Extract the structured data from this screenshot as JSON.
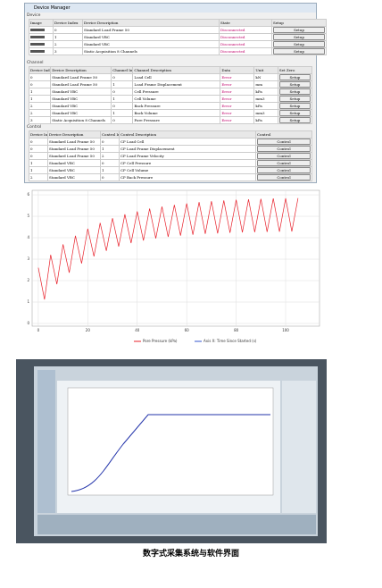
{
  "window": {
    "title": "Device Manager",
    "sections": {
      "device": "Device",
      "channel": "Channel",
      "control": "Control"
    }
  },
  "device_table": {
    "columns": [
      "Image",
      "Device Index",
      "Device Description",
      "State",
      "Setup"
    ],
    "rows": [
      [
        "0",
        "Standard Load Frame 50",
        "Disconnected",
        "Setup"
      ],
      [
        "1",
        "Standard VBC",
        "Disconnected",
        "Setup"
      ],
      [
        "2",
        "Standard VBC",
        "Disconnected",
        "Setup"
      ],
      [
        "3",
        "Static Acquisition 8 Channels",
        "Disconnected",
        "Setup"
      ]
    ]
  },
  "channel_table": {
    "columns": [
      "Device Index",
      "Device Description",
      "Channel Index",
      "Channel Description",
      "Data",
      "Unit",
      "Set Zero"
    ],
    "rows": [
      [
        "0",
        "Standard Load Frame 50",
        "0",
        "Load Cell",
        "Error",
        "kN",
        "Setup"
      ],
      [
        "0",
        "Standard Load Frame 50",
        "1",
        "Load Frame Displacement",
        "Error",
        "mm",
        "Setup"
      ],
      [
        "1",
        "Standard VBC",
        "0",
        "Cell Pressure",
        "Error",
        "kPa",
        "Setup"
      ],
      [
        "1",
        "Standard VBC",
        "1",
        "Cell Volume",
        "Error",
        "mm3",
        "Setup"
      ],
      [
        "2",
        "Standard VBC",
        "0",
        "Back Pressure",
        "Error",
        "kPa",
        "Setup"
      ],
      [
        "2",
        "Standard VBC",
        "1",
        "Back Volume",
        "Error",
        "mm3",
        "Setup"
      ],
      [
        "3",
        "Static Acquisition 8 Channels",
        "0",
        "Pore Pressure",
        "Error",
        "kPa",
        "Setup"
      ]
    ]
  },
  "control_table": {
    "columns": [
      "Device Index",
      "Device Description",
      "Control Index",
      "Control Description",
      "Control"
    ],
    "rows": [
      [
        "0",
        "Standard Load Frame 50",
        "0",
        "CP Load Cell",
        "Control"
      ],
      [
        "0",
        "Standard Load Frame 50",
        "1",
        "CP Load Frame Displacement",
        "Control"
      ],
      [
        "0",
        "Standard Load Frame 50",
        "2",
        "CP Load Frame Velocity",
        "Control"
      ],
      [
        "1",
        "Standard VBC",
        "0",
        "CP Cell Pressure",
        "Control"
      ],
      [
        "1",
        "Standard VBC",
        "1",
        "CP Cell Volume",
        "Control"
      ],
      [
        "2",
        "Standard VBC",
        "0",
        "CP Back Pressure",
        "Control"
      ]
    ]
  },
  "chart_data": {
    "type": "line",
    "x": [
      0,
      2.5,
      5,
      7.5,
      10,
      12.5,
      15,
      17.5,
      20,
      22.5,
      25,
      27.5,
      30,
      32.5,
      35,
      37.5,
      40,
      42.5,
      45,
      47.5,
      50,
      52.5,
      55,
      57.5,
      60,
      62.5,
      65,
      67.5,
      70,
      72.5,
      75,
      77.5,
      80,
      82.5,
      85,
      87.5,
      90,
      92.5,
      95,
      97.5,
      100,
      102.5,
      105
    ],
    "series": [
      {
        "name": "Pore Pressure (kPa)",
        "color": "#e8202a",
        "values": [
          2.6,
          1.12,
          3.2,
          1.83,
          3.69,
          2.37,
          4.09,
          2.8,
          4.42,
          3.13,
          4.69,
          3.39,
          4.91,
          3.59,
          5.09,
          3.75,
          5.23,
          3.87,
          5.36,
          3.97,
          5.45,
          4.04,
          5.53,
          4.1,
          5.6,
          4.14,
          5.66,
          4.18,
          5.7,
          4.2,
          5.74,
          4.23,
          5.77,
          4.25,
          5.79,
          4.26,
          5.81,
          4.27,
          5.83,
          4.28,
          5.84,
          4.29,
          5.85
        ]
      }
    ],
    "x_label": "Axis X: Time Since Started (s)",
    "xlim": [
      -2.5,
      113.7
    ],
    "ylim": [
      -0.125,
      6.21
    ],
    "xticks": [
      0,
      20,
      40,
      60,
      80,
      100
    ],
    "yticks": [
      0,
      1,
      2,
      3,
      4,
      5,
      6
    ],
    "grid": true
  },
  "caption": "数字式采集系统与软件界面"
}
